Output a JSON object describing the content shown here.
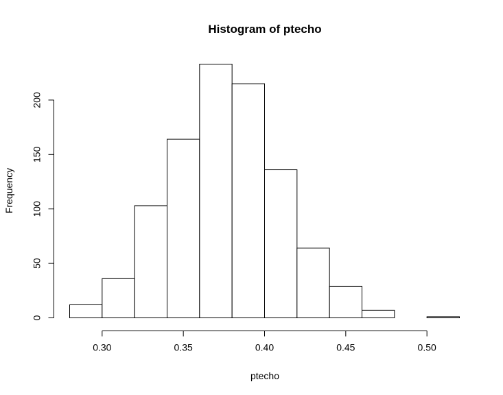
{
  "chart_data": {
    "type": "bar",
    "title": "Histogram of ptecho",
    "xlabel": "ptecho",
    "ylabel": "Frequency",
    "bins": [
      {
        "start": 0.28,
        "end": 0.3,
        "count": 12
      },
      {
        "start": 0.3,
        "end": 0.32,
        "count": 36
      },
      {
        "start": 0.32,
        "end": 0.34,
        "count": 103
      },
      {
        "start": 0.34,
        "end": 0.36,
        "count": 164
      },
      {
        "start": 0.36,
        "end": 0.38,
        "count": 233
      },
      {
        "start": 0.38,
        "end": 0.4,
        "count": 215
      },
      {
        "start": 0.4,
        "end": 0.42,
        "count": 136
      },
      {
        "start": 0.42,
        "end": 0.44,
        "count": 64
      },
      {
        "start": 0.44,
        "end": 0.46,
        "count": 29
      },
      {
        "start": 0.46,
        "end": 0.48,
        "count": 7
      },
      {
        "start": 0.48,
        "end": 0.5,
        "count": 0
      },
      {
        "start": 0.5,
        "end": 0.52,
        "count": 1
      }
    ],
    "xlim": [
      0.28,
      0.52
    ],
    "ylim": [
      0,
      233
    ],
    "x_ticks": [
      {
        "value": 0.3,
        "label": "0.30"
      },
      {
        "value": 0.35,
        "label": "0.35"
      },
      {
        "value": 0.4,
        "label": "0.40"
      },
      {
        "value": 0.45,
        "label": "0.45"
      },
      {
        "value": 0.5,
        "label": "0.50"
      }
    ],
    "y_ticks": [
      {
        "value": 0,
        "label": "0"
      },
      {
        "value": 50,
        "label": "50"
      },
      {
        "value": 100,
        "label": "100"
      },
      {
        "value": 150,
        "label": "150"
      },
      {
        "value": 200,
        "label": "200"
      }
    ],
    "grid": false,
    "legend": "none",
    "bar_fill": "#ffffff",
    "bar_stroke": "#000000"
  }
}
